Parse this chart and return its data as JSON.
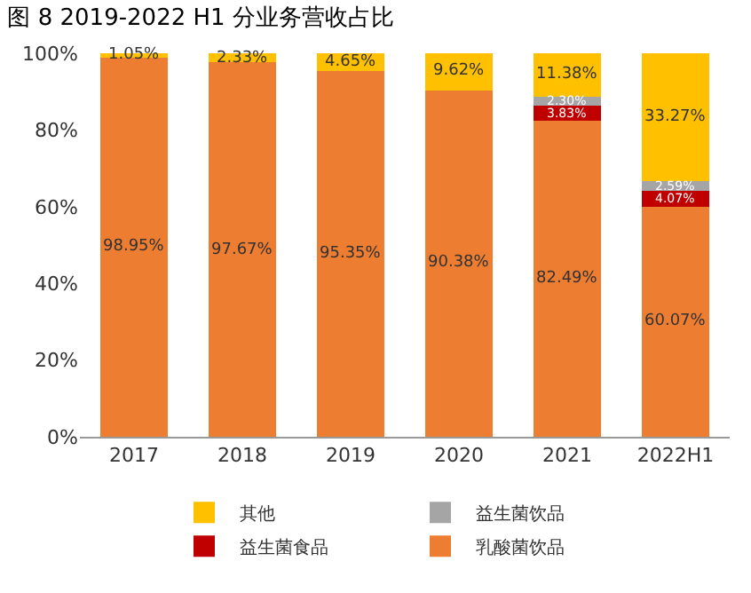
{
  "chart_data": {
    "type": "bar",
    "title": "图 8 2019-2022 H1 分业务营收占比",
    "categories": [
      "2017",
      "2018",
      "2019",
      "2020",
      "2021",
      "2022H1"
    ],
    "stacked": true,
    "ylim": [
      0,
      100
    ],
    "yticks": [
      {
        "value": 0,
        "label": "0%"
      },
      {
        "value": 20,
        "label": "20%"
      },
      {
        "value": 40,
        "label": "40%"
      },
      {
        "value": 60,
        "label": "60%"
      },
      {
        "value": 80,
        "label": "80%"
      },
      {
        "value": 100,
        "label": "100%"
      }
    ],
    "legend": "bottom",
    "series": [
      {
        "name": "乳酸菌饮品",
        "color": "#ed7d31",
        "values": [
          98.95,
          97.67,
          95.35,
          90.38,
          82.49,
          60.07
        ],
        "value_labels": [
          "98.95%",
          "97.67%",
          "95.35%",
          "90.38%",
          "82.49%",
          "60.07%"
        ]
      },
      {
        "name": "益生菌食品",
        "color": "#c00000",
        "values": [
          0,
          0,
          0,
          0,
          3.83,
          4.07
        ],
        "value_labels": [
          null,
          null,
          null,
          null,
          "3.83%",
          "4.07%"
        ]
      },
      {
        "name": "益生菌饮品",
        "color": "#a5a5a5",
        "values": [
          0,
          0,
          0,
          0,
          2.3,
          2.59
        ],
        "value_labels": [
          null,
          null,
          null,
          null,
          "2.30%",
          "2.59%"
        ]
      },
      {
        "name": "其他",
        "color": "#ffc000",
        "values": [
          1.05,
          2.33,
          4.65,
          9.62,
          11.38,
          33.27
        ],
        "value_labels": [
          "1.05%",
          "2.33%",
          "4.65%",
          "9.62%",
          "11.38%",
          "33.27%"
        ]
      }
    ]
  }
}
